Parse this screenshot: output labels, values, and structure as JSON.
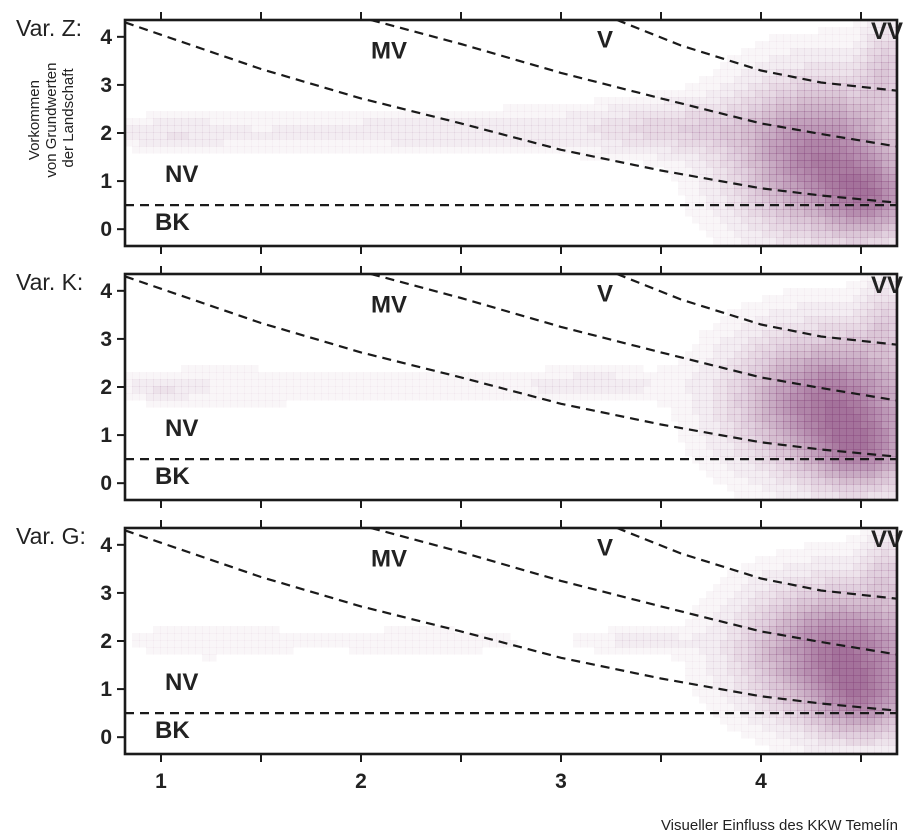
{
  "chart_data": {
    "type": "heatmap",
    "xlabel": "Visueller Einfluss des KKW Temelín",
    "ylabel": [
      "Vorkommen",
      "von Grundwerten",
      "der Landschaft"
    ],
    "xlim": [
      0.82,
      4.68
    ],
    "ylim": [
      -0.35,
      4.35
    ],
    "xticks": [
      1,
      2,
      3,
      4
    ],
    "yticks": [
      0,
      1,
      2,
      3,
      4
    ],
    "colors": {
      "density": "#8a4a7e",
      "frame": "#1a1a1a"
    },
    "zone_labels": [
      "MV",
      "V",
      "VV",
      "NV",
      "BK"
    ],
    "zone_label_positions": [
      {
        "label": "MV",
        "x": 2.05,
        "y": 3.55
      },
      {
        "label": "V",
        "x": 3.18,
        "y": 3.78
      },
      {
        "label": "VV",
        "x": 4.55,
        "y": 3.95
      },
      {
        "label": "NV",
        "x": 1.02,
        "y": 0.98
      },
      {
        "label": "BK",
        "x": 0.97,
        "y": -0.02
      }
    ],
    "boundary_lines": [
      {
        "name": "BK|NV",
        "points": [
          [
            0.82,
            0.5
          ],
          [
            4.68,
            0.5
          ]
        ]
      },
      {
        "name": "NV|MV",
        "points": [
          [
            0.82,
            4.3
          ],
          [
            1.5,
            3.33
          ],
          [
            2.0,
            2.72
          ],
          [
            2.5,
            2.2
          ],
          [
            3.0,
            1.65
          ],
          [
            3.5,
            1.22
          ],
          [
            4.0,
            0.85
          ],
          [
            4.3,
            0.7
          ],
          [
            4.68,
            0.55
          ]
        ]
      },
      {
        "name": "MV|V",
        "points": [
          [
            2.05,
            4.35
          ],
          [
            2.5,
            3.85
          ],
          [
            3.0,
            3.25
          ],
          [
            3.5,
            2.72
          ],
          [
            4.0,
            2.2
          ],
          [
            4.3,
            1.98
          ],
          [
            4.68,
            1.72
          ]
        ]
      },
      {
        "name": "V|VV",
        "points": [
          [
            3.28,
            4.35
          ],
          [
            3.6,
            3.82
          ],
          [
            4.0,
            3.3
          ],
          [
            4.3,
            3.05
          ],
          [
            4.68,
            2.88
          ]
        ]
      }
    ],
    "panels": [
      {
        "label": "Var. Z:",
        "density_blobs": [
          {
            "x": 1.05,
            "y": 2.0,
            "sx": 0.18,
            "sy": 0.2,
            "w": 0.1
          },
          {
            "x": 1.6,
            "y": 2.0,
            "sx": 0.55,
            "sy": 0.32,
            "w": 0.05
          },
          {
            "x": 2.7,
            "y": 2.05,
            "sx": 0.6,
            "sy": 0.3,
            "w": 0.08
          },
          {
            "x": 3.6,
            "y": 2.1,
            "sx": 0.3,
            "sy": 0.35,
            "w": 0.2
          },
          {
            "x": 4.3,
            "y": 1.5,
            "sx": 0.28,
            "sy": 1.0,
            "w": 0.8
          },
          {
            "x": 4.55,
            "y": 0.6,
            "sx": 0.15,
            "sy": 0.5,
            "w": 0.5
          },
          {
            "x": 4.62,
            "y": 3.4,
            "sx": 0.08,
            "sy": 0.6,
            "w": 0.25
          }
        ]
      },
      {
        "label": "Var. K:",
        "density_blobs": [
          {
            "x": 1.0,
            "y": 2.0,
            "sx": 0.12,
            "sy": 0.16,
            "w": 0.1
          },
          {
            "x": 1.3,
            "y": 2.0,
            "sx": 0.35,
            "sy": 0.32,
            "w": 0.05
          },
          {
            "x": 2.4,
            "y": 2.0,
            "sx": 0.5,
            "sy": 0.28,
            "w": 0.05
          },
          {
            "x": 3.2,
            "y": 2.05,
            "sx": 0.25,
            "sy": 0.22,
            "w": 0.08
          },
          {
            "x": 4.35,
            "y": 1.7,
            "sx": 0.3,
            "sy": 0.9,
            "w": 0.85
          },
          {
            "x": 4.5,
            "y": 0.6,
            "sx": 0.17,
            "sy": 0.5,
            "w": 0.5
          },
          {
            "x": 4.62,
            "y": 3.4,
            "sx": 0.08,
            "sy": 0.55,
            "w": 0.2
          }
        ]
      },
      {
        "label": "Var. G:",
        "density_blobs": [
          {
            "x": 1.2,
            "y": 2.0,
            "sx": 0.3,
            "sy": 0.28,
            "w": 0.05
          },
          {
            "x": 2.3,
            "y": 2.0,
            "sx": 0.5,
            "sy": 0.26,
            "w": 0.04
          },
          {
            "x": 3.4,
            "y": 2.0,
            "sx": 0.18,
            "sy": 0.18,
            "w": 0.08
          },
          {
            "x": 4.4,
            "y": 1.8,
            "sx": 0.3,
            "sy": 0.85,
            "w": 0.85
          },
          {
            "x": 4.5,
            "y": 0.7,
            "sx": 0.17,
            "sy": 0.5,
            "w": 0.45
          },
          {
            "x": 4.62,
            "y": 3.5,
            "sx": 0.08,
            "sy": 0.5,
            "w": 0.2
          }
        ]
      }
    ]
  }
}
